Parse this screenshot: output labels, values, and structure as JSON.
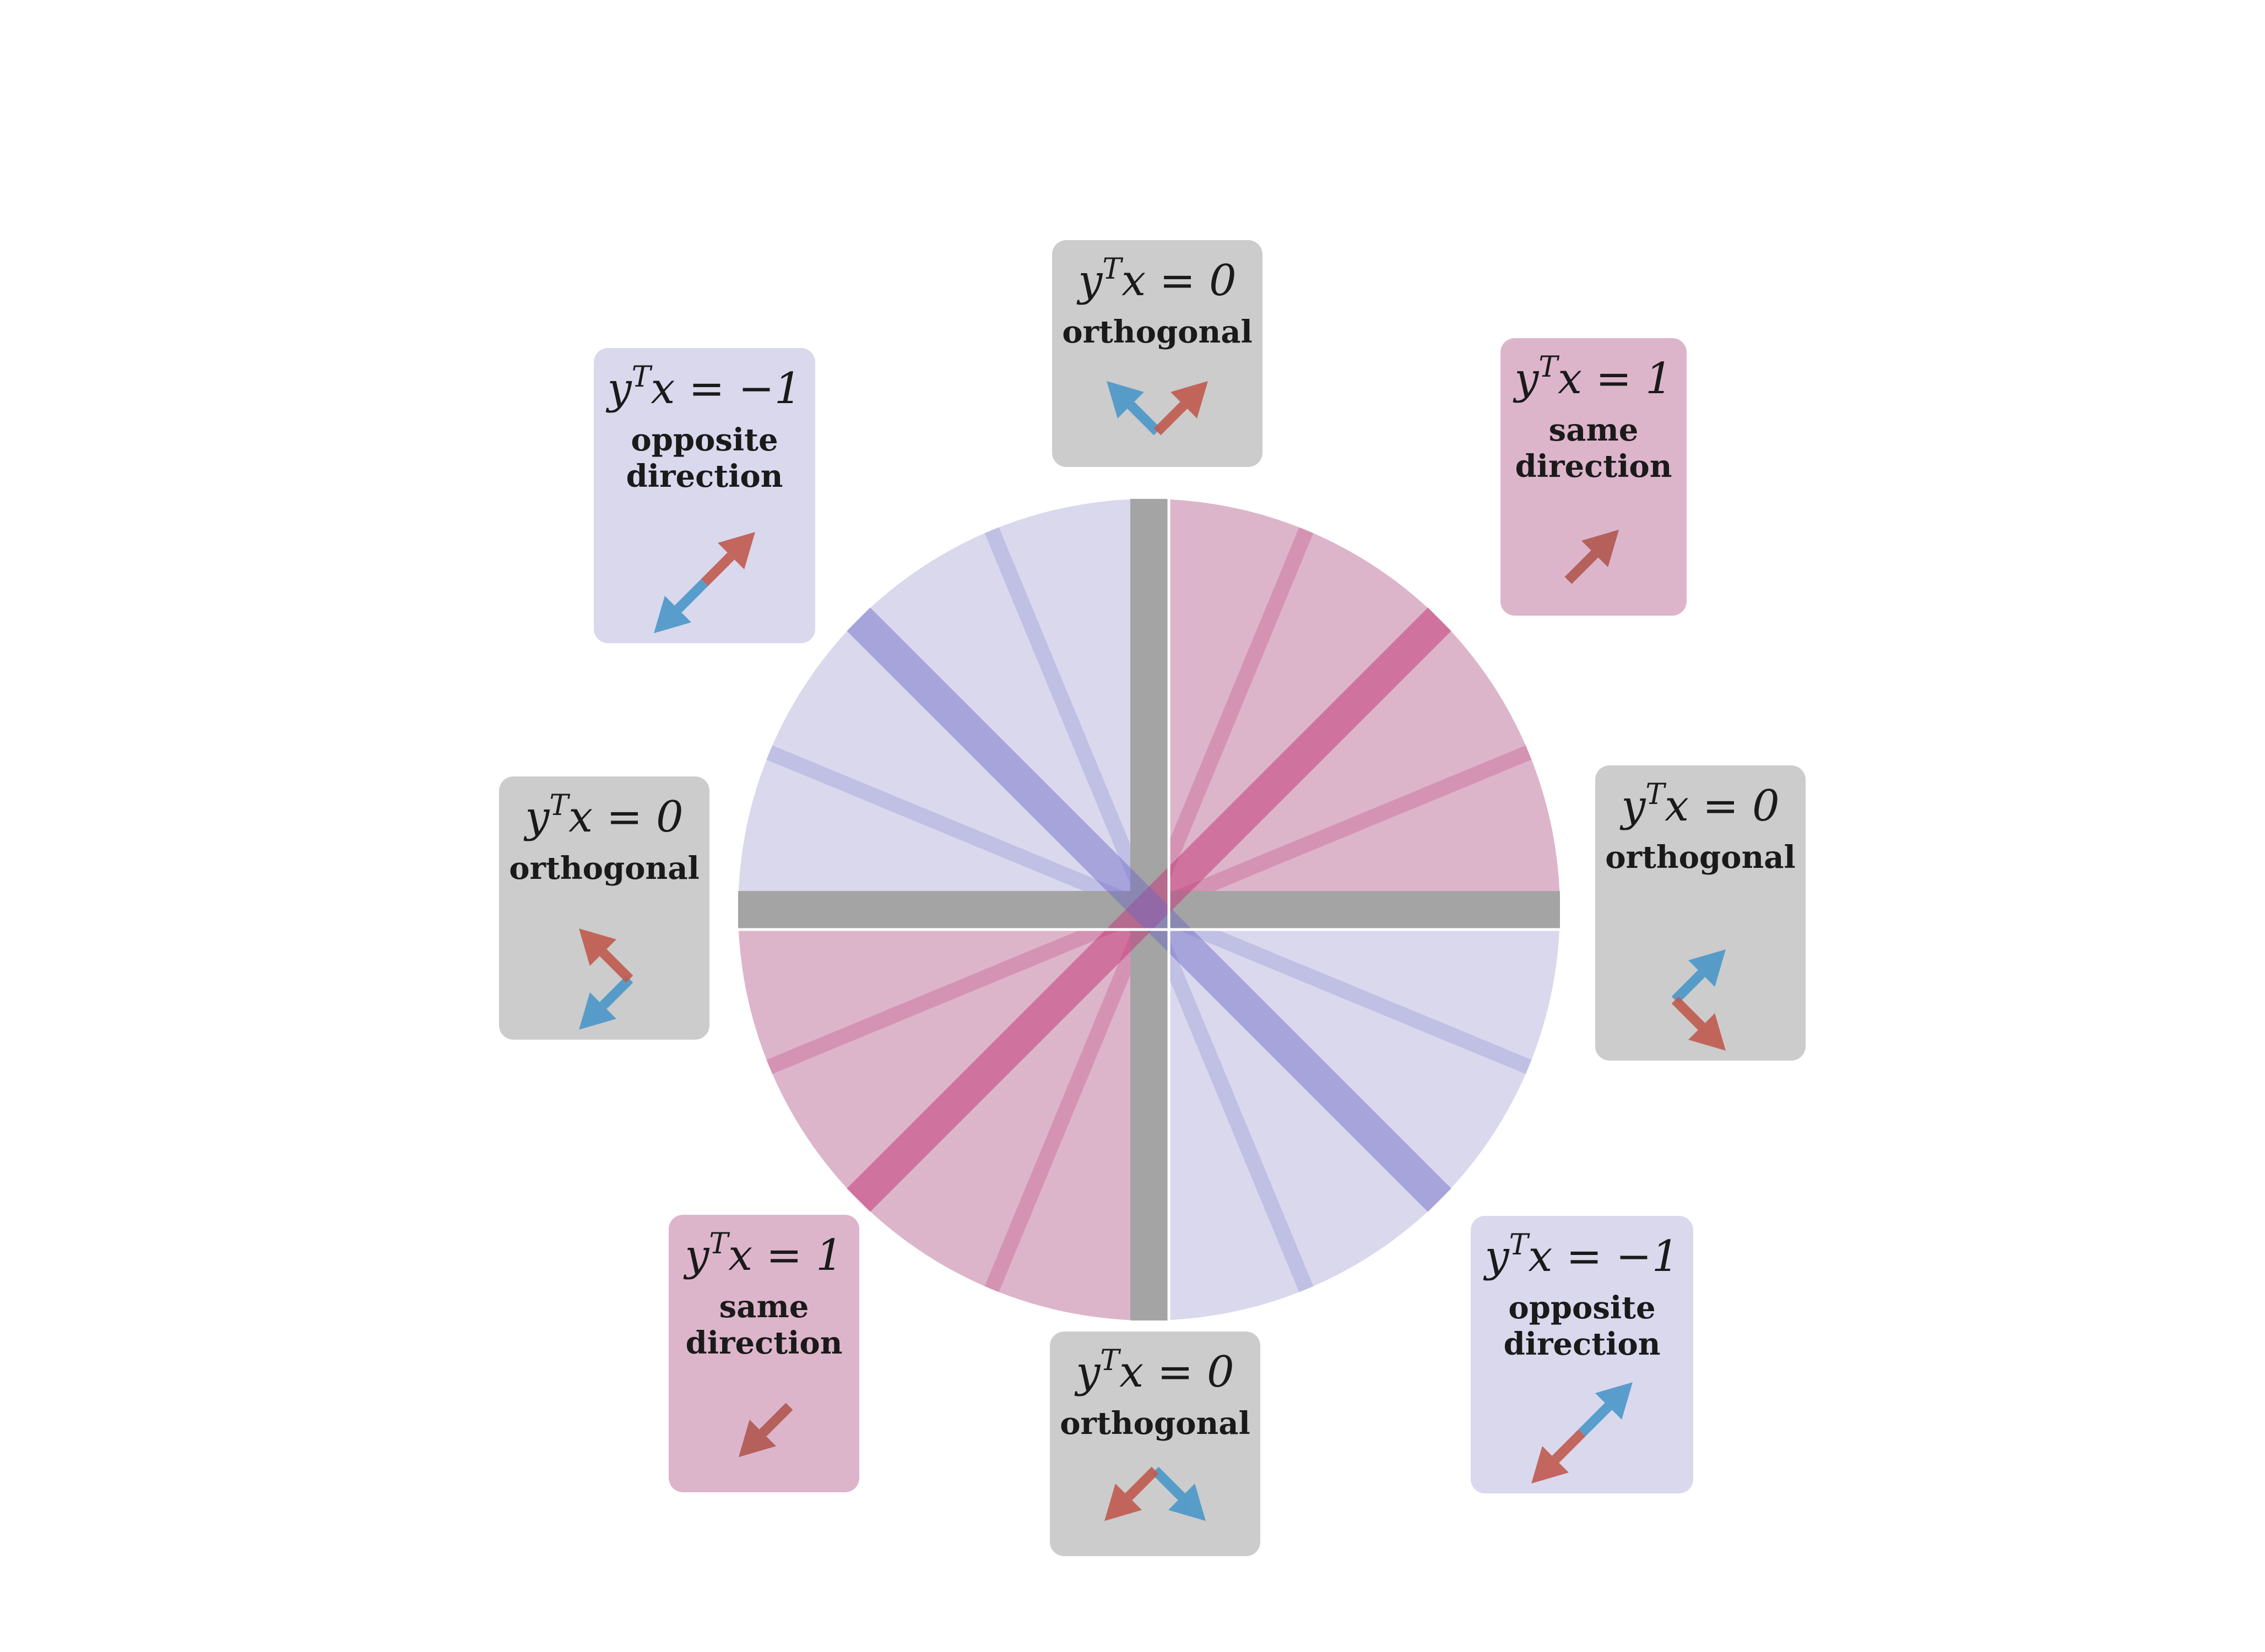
{
  "colors": {
    "same": "#ddb5cb",
    "opposite": "#d9d8ed",
    "orthogonal": "#cccccc",
    "axis_bar": "#a4a4a4",
    "pink_ray": "#c33c7a",
    "blue_ray": "#6a67c6",
    "arrow_red": "#c05a4f",
    "arrow_blue": "#4b97c9"
  },
  "icons": {
    "vector_x": "red-arrow-icon",
    "vector_y": "blue-arrow-icon"
  },
  "cards": [
    {
      "id": "top",
      "kind": "orthogonal",
      "formula": "y",
      "sup": "T",
      "rest": "x = 0",
      "lines": [
        "orthogonal"
      ],
      "red_deg": 45,
      "blue_deg": 135
    },
    {
      "id": "top-right",
      "kind": "same",
      "formula": "y",
      "sup": "T",
      "rest": "x = 1",
      "lines": [
        "same",
        "direction"
      ],
      "red_deg": 45,
      "blue_deg": 45
    },
    {
      "id": "right",
      "kind": "orthogonal",
      "formula": "y",
      "sup": "T",
      "rest": "x = 0",
      "lines": [
        "orthogonal"
      ],
      "red_deg": -45,
      "blue_deg": 45
    },
    {
      "id": "bottom-right",
      "kind": "opposite",
      "formula": "y",
      "sup": "T",
      "rest": "x = −1",
      "lines": [
        "opposite",
        "direction"
      ],
      "red_deg": -135,
      "blue_deg": 45
    },
    {
      "id": "bottom",
      "kind": "orthogonal",
      "formula": "y",
      "sup": "T",
      "rest": "x = 0",
      "lines": [
        "orthogonal"
      ],
      "red_deg": -135,
      "blue_deg": -45
    },
    {
      "id": "bottom-left",
      "kind": "same",
      "formula": "y",
      "sup": "T",
      "rest": "x = 1",
      "lines": [
        "same",
        "direction"
      ],
      "red_deg": -135,
      "blue_deg": -135
    },
    {
      "id": "left",
      "kind": "orthogonal",
      "formula": "y",
      "sup": "T",
      "rest": "x = 0",
      "lines": [
        "orthogonal"
      ],
      "red_deg": 135,
      "blue_deg": -135
    },
    {
      "id": "top-left",
      "kind": "opposite",
      "formula": "y",
      "sup": "T",
      "rest": "x = −1",
      "lines": [
        "opposite",
        "direction"
      ],
      "red_deg": 45,
      "blue_deg": -135
    }
  ],
  "wheel": {
    "rays": [
      {
        "deg": 0,
        "kind": "axis"
      },
      {
        "deg": 90,
        "kind": "axis"
      },
      {
        "deg": 45,
        "kind": "pink-main"
      },
      {
        "deg": 135,
        "kind": "blue-main"
      },
      {
        "deg": 22.5,
        "kind": "pink-thin"
      },
      {
        "deg": 67.5,
        "kind": "pink-thin"
      },
      {
        "deg": 112.5,
        "kind": "blue-thin"
      },
      {
        "deg": 157.5,
        "kind": "blue-thin"
      }
    ]
  }
}
